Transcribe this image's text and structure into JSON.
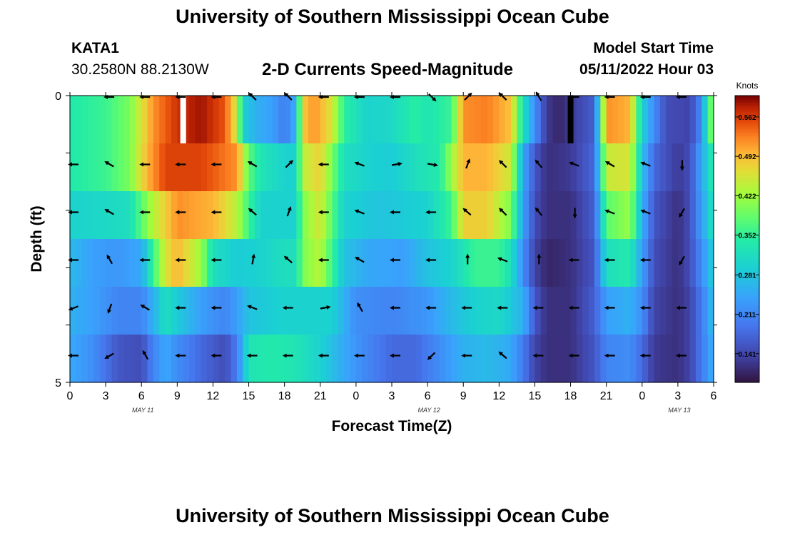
{
  "header": {
    "title": "University of Southern Mississippi Ocean Cube",
    "station": "KATA1",
    "coordinates": "30.2580N  88.2130W",
    "subtitle": "2-D Currents Speed-Magnitude",
    "model_start_label": "Model Start Time",
    "model_start_value": "05/11/2022 Hour 03"
  },
  "footer": {
    "title": "University of Southern Mississippi Ocean Cube"
  },
  "chart_data": {
    "type": "heatmap",
    "title": "2-D Currents Speed-Magnitude",
    "xlabel": "Forecast Time(Z)",
    "ylabel": "Depth (ft)",
    "x_tick_labels": [
      "0",
      "3",
      "6",
      "9",
      "12",
      "15",
      "18",
      "21",
      "0",
      "3",
      "6",
      "9",
      "12",
      "15",
      "18",
      "21",
      "0",
      "3",
      "6"
    ],
    "x_start_hour": 0,
    "x_end_hour": 54,
    "date_labels": [
      {
        "text": "MAY 11",
        "hour": 6
      },
      {
        "text": "MAY 12",
        "hour": 30
      },
      {
        "text": "MAY 13",
        "hour": 51
      }
    ],
    "y_tick_labels": [
      "0",
      "5"
    ],
    "ylim": [
      0,
      5
    ],
    "colorbar": {
      "title": "Knots",
      "ticks": [
        "0.562",
        "0.492",
        "0.422",
        "0.352",
        "0.281",
        "0.211",
        "0.141"
      ],
      "range": [
        0.09,
        0.6
      ]
    },
    "depth_levels": [
      0,
      1,
      2,
      3,
      4,
      5
    ],
    "speed_profile_by_depth": [
      [
        [
          0,
          0.34
        ],
        [
          3,
          0.36
        ],
        [
          5,
          0.4
        ],
        [
          6,
          0.46
        ],
        [
          7,
          0.52
        ],
        [
          9,
          0.57
        ],
        [
          11,
          0.59
        ],
        [
          13,
          0.55
        ],
        [
          14,
          0.45
        ],
        [
          14.5,
          0.3
        ],
        [
          15.5,
          0.26
        ],
        [
          17,
          0.24
        ],
        [
          18,
          0.2
        ],
        [
          19,
          0.26
        ],
        [
          19.5,
          0.48
        ],
        [
          20.5,
          0.52
        ],
        [
          22,
          0.46
        ],
        [
          23,
          0.35
        ],
        [
          25,
          0.3
        ],
        [
          27,
          0.31
        ],
        [
          29,
          0.35
        ],
        [
          30,
          0.33
        ],
        [
          32,
          0.36
        ],
        [
          33,
          0.52
        ],
        [
          35,
          0.53
        ],
        [
          37,
          0.49
        ],
        [
          38,
          0.32
        ],
        [
          39,
          0.22
        ],
        [
          40,
          0.13
        ],
        [
          41,
          0.11
        ],
        [
          42,
          0.13
        ],
        [
          44,
          0.17
        ],
        [
          45,
          0.52
        ],
        [
          47,
          0.5
        ],
        [
          48,
          0.3
        ],
        [
          49,
          0.22
        ],
        [
          50,
          0.15
        ],
        [
          52,
          0.14
        ],
        [
          53,
          0.22
        ],
        [
          53.5,
          0.35
        ],
        [
          54,
          0.42
        ]
      ],
      [
        [
          0,
          0.34
        ],
        [
          3,
          0.36
        ],
        [
          5,
          0.4
        ],
        [
          6.5,
          0.5
        ],
        [
          8,
          0.56
        ],
        [
          11,
          0.56
        ],
        [
          14,
          0.52
        ],
        [
          15,
          0.38
        ],
        [
          16,
          0.33
        ],
        [
          18,
          0.3
        ],
        [
          19,
          0.3
        ],
        [
          19.5,
          0.44
        ],
        [
          21,
          0.48
        ],
        [
          22,
          0.4
        ],
        [
          23,
          0.32
        ],
        [
          25,
          0.3
        ],
        [
          27,
          0.29
        ],
        [
          29,
          0.32
        ],
        [
          31,
          0.34
        ],
        [
          33,
          0.5
        ],
        [
          35,
          0.5
        ],
        [
          37,
          0.45
        ],
        [
          38,
          0.25
        ],
        [
          39,
          0.16
        ],
        [
          40,
          0.12
        ],
        [
          42,
          0.13
        ],
        [
          44,
          0.18
        ],
        [
          45,
          0.45
        ],
        [
          47,
          0.46
        ],
        [
          48,
          0.28
        ],
        [
          49,
          0.18
        ],
        [
          51,
          0.13
        ],
        [
          52,
          0.15
        ],
        [
          53,
          0.25
        ],
        [
          54,
          0.35
        ]
      ],
      [
        [
          0,
          0.3
        ],
        [
          3,
          0.31
        ],
        [
          5,
          0.32
        ],
        [
          7,
          0.44
        ],
        [
          9,
          0.52
        ],
        [
          12,
          0.5
        ],
        [
          14,
          0.44
        ],
        [
          15,
          0.36
        ],
        [
          16,
          0.3
        ],
        [
          18,
          0.3
        ],
        [
          19,
          0.3
        ],
        [
          19.5,
          0.4
        ],
        [
          21,
          0.46
        ],
        [
          22,
          0.38
        ],
        [
          23,
          0.3
        ],
        [
          26,
          0.28
        ],
        [
          28,
          0.29
        ],
        [
          30,
          0.3
        ],
        [
          32,
          0.36
        ],
        [
          33,
          0.48
        ],
        [
          35,
          0.48
        ],
        [
          37,
          0.4
        ],
        [
          38,
          0.24
        ],
        [
          39,
          0.15
        ],
        [
          40,
          0.12
        ],
        [
          42,
          0.12
        ],
        [
          44,
          0.17
        ],
        [
          45,
          0.38
        ],
        [
          47,
          0.42
        ],
        [
          48,
          0.26
        ],
        [
          49,
          0.16
        ],
        [
          51,
          0.12
        ],
        [
          52,
          0.15
        ],
        [
          53,
          0.24
        ],
        [
          54,
          0.33
        ]
      ],
      [
        [
          0,
          0.27
        ],
        [
          2,
          0.24
        ],
        [
          4,
          0.23
        ],
        [
          6,
          0.25
        ],
        [
          7,
          0.36
        ],
        [
          8,
          0.46
        ],
        [
          9,
          0.5
        ],
        [
          11,
          0.42
        ],
        [
          12,
          0.32
        ],
        [
          14,
          0.29
        ],
        [
          16,
          0.3
        ],
        [
          18,
          0.32
        ],
        [
          19,
          0.32
        ],
        [
          19.5,
          0.4
        ],
        [
          21,
          0.44
        ],
        [
          22,
          0.36
        ],
        [
          23,
          0.28
        ],
        [
          25,
          0.25
        ],
        [
          28,
          0.24
        ],
        [
          30,
          0.28
        ],
        [
          32,
          0.3
        ],
        [
          34,
          0.36
        ],
        [
          36,
          0.36
        ],
        [
          37,
          0.32
        ],
        [
          38,
          0.22
        ],
        [
          39,
          0.14
        ],
        [
          40,
          0.11
        ],
        [
          42,
          0.12
        ],
        [
          44,
          0.16
        ],
        [
          45,
          0.32
        ],
        [
          47,
          0.34
        ],
        [
          48,
          0.24
        ],
        [
          49,
          0.15
        ],
        [
          51,
          0.12
        ],
        [
          52,
          0.15
        ],
        [
          53,
          0.22
        ],
        [
          54,
          0.3
        ]
      ],
      [
        [
          0,
          0.26
        ],
        [
          2,
          0.24
        ],
        [
          4,
          0.21
        ],
        [
          6,
          0.21
        ],
        [
          7,
          0.26
        ],
        [
          8,
          0.32
        ],
        [
          9,
          0.29
        ],
        [
          11,
          0.24
        ],
        [
          13,
          0.21
        ],
        [
          14,
          0.24
        ],
        [
          15,
          0.28
        ],
        [
          18,
          0.3
        ],
        [
          20,
          0.3
        ],
        [
          22,
          0.3
        ],
        [
          23,
          0.26
        ],
        [
          24,
          0.22
        ],
        [
          27,
          0.21
        ],
        [
          30,
          0.23
        ],
        [
          32,
          0.27
        ],
        [
          34,
          0.3
        ],
        [
          36,
          0.31
        ],
        [
          38,
          0.26
        ],
        [
          39,
          0.16
        ],
        [
          40,
          0.12
        ],
        [
          42,
          0.12
        ],
        [
          44,
          0.17
        ],
        [
          45,
          0.24
        ],
        [
          47,
          0.26
        ],
        [
          48,
          0.22
        ],
        [
          49,
          0.14
        ],
        [
          51,
          0.12
        ],
        [
          52,
          0.14
        ],
        [
          53,
          0.2
        ],
        [
          54,
          0.28
        ]
      ],
      [
        [
          0,
          0.25
        ],
        [
          2,
          0.22
        ],
        [
          4,
          0.16
        ],
        [
          6,
          0.15
        ],
        [
          7,
          0.21
        ],
        [
          8,
          0.25
        ],
        [
          9,
          0.22
        ],
        [
          11,
          0.18
        ],
        [
          13,
          0.15
        ],
        [
          14,
          0.2
        ],
        [
          15,
          0.33
        ],
        [
          17,
          0.34
        ],
        [
          19,
          0.33
        ],
        [
          21,
          0.3
        ],
        [
          23,
          0.25
        ],
        [
          25,
          0.21
        ],
        [
          27,
          0.18
        ],
        [
          29,
          0.18
        ],
        [
          31,
          0.22
        ],
        [
          33,
          0.26
        ],
        [
          35,
          0.27
        ],
        [
          37,
          0.25
        ],
        [
          38,
          0.2
        ],
        [
          39,
          0.14
        ],
        [
          40,
          0.12
        ],
        [
          42,
          0.12
        ],
        [
          44,
          0.16
        ],
        [
          45,
          0.21
        ],
        [
          47,
          0.22
        ],
        [
          48,
          0.18
        ],
        [
          49,
          0.13
        ],
        [
          51,
          0.12
        ],
        [
          52,
          0.14
        ],
        [
          53,
          0.2
        ],
        [
          54,
          0.26
        ]
      ]
    ],
    "missing_columns": [
      {
        "hour": 9.5,
        "depth": 0,
        "color": "#ffffff"
      },
      {
        "hour": 42,
        "depth": 0,
        "color": "#000000"
      }
    ],
    "arrow_hours": [
      0,
      3,
      6,
      9,
      12,
      15,
      18,
      21,
      24,
      27,
      30,
      33,
      36,
      39,
      42,
      45,
      48,
      51
    ],
    "arrow_directions_deg": [
      [
        null,
        0,
        0,
        0,
        0,
        315,
        315,
        0,
        0,
        0,
        135,
        225,
        315,
        300,
        0,
        0,
        0,
        0
      ],
      [
        0,
        330,
        0,
        0,
        0,
        330,
        225,
        0,
        340,
        190,
        170,
        250,
        315,
        310,
        340,
        330,
        340,
        90
      ],
      [
        0,
        330,
        0,
        0,
        0,
        320,
        250,
        0,
        340,
        0,
        0,
        320,
        315,
        310,
        90,
        340,
        340,
        60
      ],
      [
        0,
        300,
        0,
        0,
        0,
        260,
        320,
        0,
        330,
        0,
        0,
        270,
        340,
        270,
        0,
        0,
        0,
        60
      ],
      [
        20,
        70,
        330,
        0,
        0,
        340,
        0,
        190,
        300,
        0,
        0,
        0,
        0,
        0,
        0,
        0,
        0,
        0
      ],
      [
        0,
        30,
        300,
        0,
        0,
        0,
        0,
        0,
        0,
        0,
        45,
        0,
        320,
        0,
        0,
        0,
        0,
        0
      ]
    ]
  }
}
